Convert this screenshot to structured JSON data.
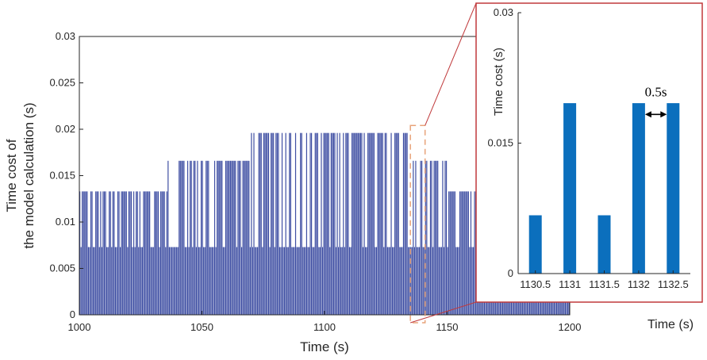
{
  "colors": {
    "main_bar": "#3f4fa3",
    "inset_bar": "#0b6fbd",
    "inset_border": "#c0393b",
    "highlight_box": "#e8a37a",
    "axis": "#262626"
  },
  "chart_data": [
    {
      "type": "bar",
      "title": "",
      "xlabel": "Time (s)",
      "ylabel_lines": [
        "Time cost of",
        "the model calculation (s)"
      ],
      "xlim": [
        1000,
        1200
      ],
      "ylim": [
        0,
        0.03
      ],
      "xticks": [
        "1000",
        "1050",
        "1100",
        "1150",
        "1200"
      ],
      "yticks": [
        "0",
        "0.005",
        "0.01",
        "0.015",
        "0.02",
        "0.025",
        "0.03"
      ],
      "grid": false,
      "sample_interval_s": 0.5,
      "level_segments": [
        {
          "x_start": 1000,
          "x_end": 1036,
          "peak": 0.0133,
          "base": 0.0073
        },
        {
          "x_start": 1036,
          "x_end": 1070,
          "peak": 0.0166,
          "base": 0.0073
        },
        {
          "x_start": 1070,
          "x_end": 1136,
          "peak": 0.0196,
          "base": 0.0073
        },
        {
          "x_start": 1136,
          "x_end": 1150,
          "peak": 0.0166,
          "base": 0.0073
        },
        {
          "x_start": 1150,
          "x_end": 1162,
          "peak": 0.0133,
          "base": 0.0073
        },
        {
          "x_start": 1162,
          "x_end": 1200,
          "peak": 0.0105,
          "base": 0.0073
        }
      ],
      "highlight_range": [
        1135,
        1141
      ]
    },
    {
      "type": "bar",
      "xlabel": "Time (s)",
      "ylabel": "Time cost (s)",
      "categories": [
        "1130.5",
        "1131",
        "1131.5",
        "1132",
        "1132.5"
      ],
      "values": [
        0.0067,
        0.0196,
        0.0067,
        0.0196,
        0.0196
      ],
      "ylim": [
        0,
        0.03
      ],
      "yticks": [
        "0",
        "0.015",
        "0.03"
      ],
      "annotation": "0.5s",
      "grid": false
    }
  ]
}
